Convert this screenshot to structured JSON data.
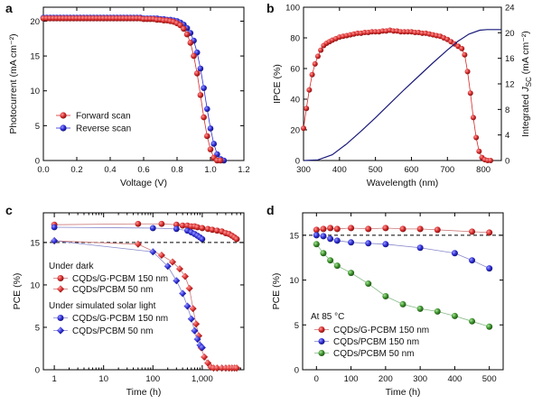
{
  "chart_data": [
    {
      "panel": "a",
      "type": "line",
      "xlabel": "Voltage (V)",
      "ylabel": "Photocurrent (mA cm⁻²)",
      "xlim": [
        0,
        1.2
      ],
      "ylim": [
        0,
        22
      ],
      "xticks": [
        "0.0",
        "0.2",
        "0.4",
        "0.6",
        "0.8",
        "1.0",
        "1.2"
      ],
      "yticks": [
        "0",
        "5",
        "10",
        "15",
        "20"
      ],
      "legend_position": "lower-left",
      "series": [
        {
          "name": "Forward scan",
          "color": "#d42a2a",
          "marker": "circle",
          "x": [
            0,
            0.02,
            0.04,
            0.06,
            0.08,
            0.1,
            0.12,
            0.14,
            0.16,
            0.18,
            0.2,
            0.22,
            0.24,
            0.26,
            0.28,
            0.3,
            0.32,
            0.34,
            0.36,
            0.38,
            0.4,
            0.42,
            0.44,
            0.46,
            0.48,
            0.5,
            0.52,
            0.54,
            0.56,
            0.58,
            0.6,
            0.62,
            0.64,
            0.66,
            0.68,
            0.7,
            0.72,
            0.74,
            0.76,
            0.78,
            0.8,
            0.82,
            0.84,
            0.86,
            0.88,
            0.9,
            0.92,
            0.94,
            0.96,
            0.98,
            1.0,
            1.02,
            1.04,
            1.06
          ],
          "y": [
            20.4,
            20.4,
            20.4,
            20.4,
            20.4,
            20.4,
            20.4,
            20.4,
            20.4,
            20.4,
            20.4,
            20.4,
            20.4,
            20.4,
            20.4,
            20.4,
            20.4,
            20.4,
            20.4,
            20.4,
            20.4,
            20.4,
            20.4,
            20.4,
            20.4,
            20.4,
            20.4,
            20.4,
            20.4,
            20.4,
            20.3,
            20.3,
            20.3,
            20.3,
            20.2,
            20.2,
            20.1,
            20.1,
            20.0,
            19.9,
            19.7,
            19.4,
            18.9,
            18.1,
            16.9,
            15.0,
            12.5,
            9.4,
            6.2,
            3.5,
            1.6,
            0.4,
            0,
            0
          ]
        },
        {
          "name": "Reverse scan",
          "color": "#2b2bd4",
          "marker": "circle",
          "x": [
            0,
            0.02,
            0.04,
            0.06,
            0.08,
            0.1,
            0.12,
            0.14,
            0.16,
            0.18,
            0.2,
            0.22,
            0.24,
            0.26,
            0.28,
            0.3,
            0.32,
            0.34,
            0.36,
            0.38,
            0.4,
            0.42,
            0.44,
            0.46,
            0.48,
            0.5,
            0.52,
            0.54,
            0.56,
            0.58,
            0.6,
            0.62,
            0.64,
            0.66,
            0.68,
            0.7,
            0.72,
            0.74,
            0.76,
            0.78,
            0.8,
            0.82,
            0.84,
            0.86,
            0.88,
            0.9,
            0.92,
            0.94,
            0.96,
            0.98,
            1.0,
            1.02,
            1.04,
            1.06,
            1.08
          ],
          "y": [
            20.5,
            20.5,
            20.5,
            20.5,
            20.5,
            20.5,
            20.5,
            20.5,
            20.5,
            20.5,
            20.5,
            20.5,
            20.5,
            20.5,
            20.5,
            20.5,
            20.5,
            20.5,
            20.5,
            20.5,
            20.5,
            20.5,
            20.5,
            20.5,
            20.5,
            20.5,
            20.5,
            20.5,
            20.5,
            20.5,
            20.4,
            20.4,
            20.4,
            20.4,
            20.4,
            20.3,
            20.3,
            20.2,
            20.2,
            20.1,
            20.0,
            19.8,
            19.5,
            19.0,
            18.3,
            17.2,
            15.5,
            13.2,
            10.4,
            7.4,
            4.6,
            2.4,
            0.9,
            0.2,
            0
          ]
        }
      ]
    },
    {
      "panel": "b",
      "type": "line",
      "xlabel": "Wavelength (nm)",
      "ylabel": "IPCE (%)",
      "ylabel_right": "Integrated J_SC (mA cm⁻²)",
      "ylabel_right_parts": {
        "pre": "Integrated ",
        "J": "J",
        "sub": "SC",
        "post": " (mA cm⁻²)"
      },
      "xlim": [
        300,
        850
      ],
      "ylim": [
        0,
        100
      ],
      "ylim_right": [
        0,
        24
      ],
      "xticks": [
        "300",
        "400",
        "500",
        "600",
        "700",
        "800"
      ],
      "yticks": [
        "0",
        "20",
        "40",
        "60",
        "80",
        "100"
      ],
      "yticks_right": [
        "0",
        "4",
        "8",
        "12",
        "16",
        "20",
        "24"
      ],
      "series": [
        {
          "name": "IPCE",
          "axis": "left",
          "color": "#d42a2a",
          "marker": "circle",
          "x": [
            300,
            308,
            316,
            324,
            332,
            340,
            348,
            356,
            364,
            372,
            380,
            390,
            400,
            410,
            420,
            430,
            440,
            450,
            460,
            470,
            480,
            490,
            500,
            510,
            520,
            530,
            540,
            550,
            560,
            570,
            580,
            590,
            600,
            610,
            620,
            630,
            640,
            650,
            660,
            670,
            680,
            690,
            700,
            710,
            720,
            730,
            740,
            748,
            756,
            764,
            772,
            780,
            788,
            796,
            804,
            812,
            820
          ],
          "y": [
            21,
            34,
            46,
            56,
            63,
            68,
            72,
            75,
            76.5,
            77.5,
            78.5,
            79.5,
            80.5,
            81,
            81.5,
            82,
            82.5,
            83,
            83,
            83.5,
            83.5,
            84,
            84,
            84,
            84.5,
            84.5,
            85,
            84.5,
            84.5,
            84,
            84,
            84,
            84,
            83.5,
            83.5,
            83,
            83,
            82.5,
            82,
            81.5,
            81,
            80,
            79,
            77.5,
            76,
            74.5,
            73,
            69,
            58,
            44,
            28,
            15,
            6,
            2,
            0.5,
            0,
            0
          ]
        },
        {
          "name": "Integrated J_SC",
          "axis": "right",
          "color": "#1a1a7a",
          "marker": "none",
          "x": [
            300,
            340,
            380,
            420,
            460,
            500,
            540,
            580,
            620,
            660,
            700,
            730,
            760,
            790,
            810,
            830,
            850
          ],
          "y": [
            0,
            0.1,
            0.9,
            2.6,
            4.6,
            6.7,
            8.9,
            11.1,
            13.2,
            15.3,
            17.3,
            18.7,
            19.8,
            20.4,
            20.5,
            20.5,
            20.5
          ]
        }
      ]
    },
    {
      "panel": "c",
      "type": "line",
      "xlabel": "Time (h)",
      "ylabel": "PCE (%)",
      "xscale": "log",
      "xlim": [
        0.6,
        7000
      ],
      "ylim": [
        0,
        18.5
      ],
      "xticks": [
        "1",
        "10",
        "100",
        "1,000"
      ],
      "yticks": [
        "0",
        "5",
        "10",
        "15"
      ],
      "reference_line": 15,
      "legend_groups": [
        "Under dark",
        "Under simulated solar light"
      ],
      "series": [
        {
          "name": "CQDs/G-PCBM 150 nm",
          "group": "Under dark",
          "color": "#d42a2a",
          "marker": "circle",
          "x": [
            1,
            50,
            150,
            300,
            400,
            500,
            600,
            700,
            800,
            1000,
            1300,
            1600,
            2000,
            2500,
            3000,
            3500,
            4000,
            4500,
            5000
          ],
          "y": [
            17.1,
            17.2,
            17.2,
            17.1,
            17.0,
            17.0,
            16.9,
            16.9,
            16.8,
            16.7,
            16.6,
            16.5,
            16.4,
            16.3,
            16.1,
            16.0,
            15.8,
            15.6,
            15.4
          ]
        },
        {
          "name": "CQDs/PCBM 50 nm",
          "group": "Under dark",
          "color": "#d42a2a",
          "marker": "diamond",
          "x": [
            1,
            50,
            150,
            250,
            350,
            450,
            550,
            650,
            750,
            850,
            950,
            1100,
            1300,
            1500,
            1700,
            2000,
            2500,
            3000,
            3500,
            4000,
            4500,
            5000
          ],
          "y": [
            15.2,
            14.8,
            13.5,
            12.7,
            11.9,
            11.0,
            9.6,
            7.2,
            5.4,
            4.0,
            2.6,
            1.5,
            0.8,
            0.3,
            0.2,
            0.2,
            0.2,
            0.2,
            0.2,
            0.2,
            0.2,
            0.2
          ]
        },
        {
          "name": "CQDs/G-PCBM 150 nm",
          "group": "Under simulated solar light",
          "color": "#2b2bd4",
          "marker": "circle",
          "x": [
            1,
            100,
            300,
            500,
            600,
            700,
            800,
            900,
            1000
          ],
          "y": [
            16.8,
            16.7,
            16.6,
            16.4,
            16.2,
            16.0,
            15.8,
            15.6,
            15.4
          ]
        },
        {
          "name": "CQDs/PCBM 50 nm",
          "group": "Under simulated solar light",
          "color": "#2b2bd4",
          "marker": "diamond",
          "x": [
            1,
            100,
            200,
            300,
            400,
            500,
            600,
            700,
            800,
            900,
            1000
          ],
          "y": [
            15.2,
            13.9,
            12.2,
            10.5,
            9.0,
            7.5,
            6.0,
            4.6,
            3.6,
            2.9,
            2.6
          ]
        }
      ]
    },
    {
      "panel": "d",
      "type": "line",
      "xlabel": "Time (h)",
      "ylabel": "PCE (%)",
      "xlim": [
        -40,
        540
      ],
      "ylim": [
        0,
        17.5
      ],
      "xticks": [
        "0",
        "100",
        "200",
        "300",
        "400",
        "500"
      ],
      "yticks": [
        "0",
        "5",
        "10",
        "15"
      ],
      "reference_line": 15,
      "annotation": "At 85 °C",
      "series": [
        {
          "name": "CQDs/G-PCBM 150 nm",
          "color": "#d42a2a",
          "marker": "circle",
          "x": [
            0,
            20,
            40,
            60,
            100,
            150,
            200,
            250,
            300,
            350,
            450,
            500
          ],
          "y": [
            15.6,
            15.7,
            15.8,
            15.7,
            15.8,
            15.7,
            15.8,
            15.7,
            15.7,
            15.6,
            15.4,
            15.3
          ]
        },
        {
          "name": "CQDs/PCBM 150 nm",
          "color": "#2b2bd4",
          "marker": "circle",
          "x": [
            0,
            20,
            40,
            60,
            100,
            150,
            200,
            300,
            400,
            450,
            500
          ],
          "y": [
            15.0,
            14.9,
            14.6,
            14.4,
            14.2,
            14.1,
            14.0,
            13.6,
            13.0,
            12.2,
            11.3
          ]
        },
        {
          "name": "CQDs/PCBM 50 nm",
          "color": "#3a8f2a",
          "marker": "circle",
          "x": [
            0,
            20,
            40,
            60,
            100,
            150,
            200,
            250,
            300,
            350,
            400,
            450,
            500
          ],
          "y": [
            14.0,
            13.0,
            12.2,
            11.6,
            10.8,
            9.6,
            8.2,
            7.3,
            6.8,
            6.5,
            6.0,
            5.4,
            4.8
          ]
        }
      ]
    }
  ]
}
